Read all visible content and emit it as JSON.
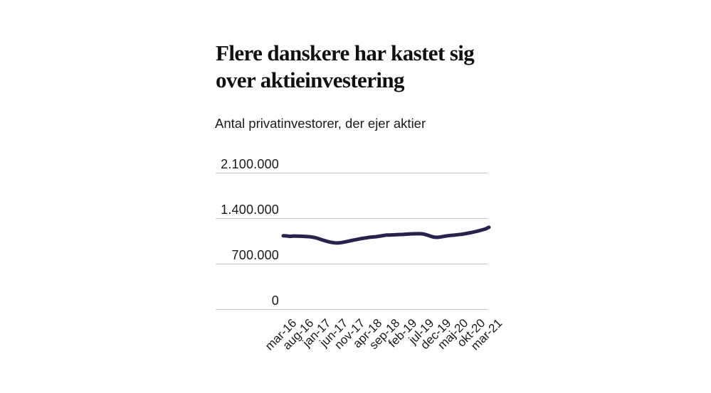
{
  "header": {
    "title_lines": [
      "Flere danskere har kastet sig",
      "over aktieinvestering"
    ],
    "subtitle": "Antal privatinvestorer, der ejer aktier"
  },
  "colors": {
    "line": "#29224c",
    "grid": "#c3c3c3",
    "text": "#1a1a1a",
    "background": "#ffffff"
  },
  "chart_data": {
    "type": "line",
    "title": "Flere danskere har kastet sig over aktieinvestering",
    "subtitle": "Antal privatinvestorer, der ejer aktier",
    "xlabel": "",
    "ylabel": "",
    "ylim": [
      0,
      2100000
    ],
    "grid": "horizontal-only",
    "legend": "none",
    "y_ticks": [
      {
        "value": 0,
        "label": "0"
      },
      {
        "value": 700000,
        "label": "700.000"
      },
      {
        "value": 1400000,
        "label": "1.400.000"
      },
      {
        "value": 2100000,
        "label": "2.100.000"
      }
    ],
    "x_ticks": [
      {
        "month": 0,
        "label": "mar-16"
      },
      {
        "month": 5,
        "label": "aug-16"
      },
      {
        "month": 10,
        "label": "jan-17"
      },
      {
        "month": 15,
        "label": "jun-17"
      },
      {
        "month": 20,
        "label": "nov-17"
      },
      {
        "month": 25,
        "label": "apr-18"
      },
      {
        "month": 30,
        "label": "sep-18"
      },
      {
        "month": 35,
        "label": "feb-19"
      },
      {
        "month": 40,
        "label": "jul-19"
      },
      {
        "month": 45,
        "label": "dec-19"
      },
      {
        "month": 50,
        "label": "maj-20"
      },
      {
        "month": 55,
        "label": "okt-20"
      },
      {
        "month": 60,
        "label": "mar-21"
      }
    ],
    "series": [
      {
        "name": "Antal privatinvestorer, der ejer aktier",
        "color": "#29224c",
        "points": [
          [
            0,
            1130000
          ],
          [
            1,
            1127000
          ],
          [
            2,
            1120000
          ],
          [
            3,
            1125000
          ],
          [
            4,
            1124000
          ],
          [
            5,
            1122000
          ],
          [
            6,
            1120000
          ],
          [
            7,
            1117000
          ],
          [
            8,
            1112000
          ],
          [
            9,
            1104000
          ],
          [
            10,
            1090000
          ],
          [
            11,
            1072000
          ],
          [
            12,
            1055000
          ],
          [
            13,
            1040000
          ],
          [
            14,
            1028000
          ],
          [
            15,
            1020000
          ],
          [
            16,
            1018000
          ],
          [
            17,
            1025000
          ],
          [
            18,
            1035000
          ],
          [
            19,
            1046000
          ],
          [
            20,
            1058000
          ],
          [
            21,
            1068000
          ],
          [
            22,
            1078000
          ],
          [
            23,
            1088000
          ],
          [
            24,
            1096000
          ],
          [
            25,
            1105000
          ],
          [
            26,
            1110000
          ],
          [
            27,
            1115000
          ],
          [
            28,
            1122000
          ],
          [
            29,
            1131000
          ],
          [
            30,
            1140000
          ],
          [
            31,
            1141000
          ],
          [
            32,
            1143000
          ],
          [
            33,
            1146000
          ],
          [
            34,
            1148000
          ],
          [
            35,
            1150000
          ],
          [
            36,
            1154000
          ],
          [
            37,
            1158000
          ],
          [
            38,
            1159000
          ],
          [
            39,
            1160000
          ],
          [
            40,
            1162000
          ],
          [
            41,
            1155000
          ],
          [
            42,
            1140000
          ],
          [
            43,
            1122000
          ],
          [
            44,
            1108000
          ],
          [
            45,
            1105000
          ],
          [
            46,
            1112000
          ],
          [
            47,
            1121000
          ],
          [
            48,
            1130000
          ],
          [
            49,
            1135000
          ],
          [
            50,
            1140000
          ],
          [
            51,
            1146000
          ],
          [
            52,
            1152000
          ],
          [
            53,
            1161000
          ],
          [
            54,
            1170000
          ],
          [
            55,
            1180000
          ],
          [
            56,
            1192000
          ],
          [
            57,
            1205000
          ],
          [
            58,
            1220000
          ],
          [
            59,
            1235000
          ],
          [
            60,
            1260000
          ]
        ]
      }
    ]
  }
}
